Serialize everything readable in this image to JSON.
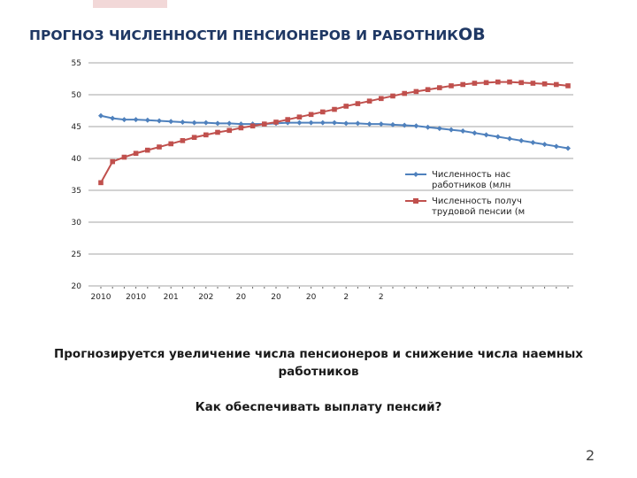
{
  "title_main": "ПРОГНОЗ ЧИСЛЕННОСТИ ПЕНСИОНЕРОВ И РАБОТНИК",
  "title_tail": "ОВ",
  "caption_line1": "Прогнозируется увеличение числа пенсионеров и снижение числа наемных работников",
  "caption_line2": "Как обеспечивать выплату пенсий?",
  "page_number": "2",
  "chart_data": {
    "type": "line",
    "title": "",
    "xlabel": "",
    "ylabel": "",
    "ylim": [
      20,
      55
    ],
    "yticks": [
      "20",
      "25",
      "30",
      "35",
      "40",
      "45",
      "50",
      "55"
    ],
    "xtick_labels": [
      "2010",
      "2010",
      "201",
      "202",
      "20",
      "20",
      "20",
      "2",
      "2"
    ],
    "grid": "horizontal",
    "legend_position": "right",
    "colors": {
      "workers": "#4f81bd",
      "pensioners": "#c0504d",
      "grid": "#a6a6a6"
    },
    "series": [
      {
        "name": "Численность нас работников (млн",
        "legend_line1": "Численность нас",
        "legend_line2": "работников (млн",
        "values": [
          46.7,
          46.3,
          46.1,
          46.1,
          46.0,
          45.9,
          45.8,
          45.7,
          45.6,
          45.6,
          45.5,
          45.5,
          45.4,
          45.4,
          45.4,
          45.5,
          45.6,
          45.6,
          45.6,
          45.6,
          45.6,
          45.5,
          45.5,
          45.4,
          45.4,
          45.3,
          45.2,
          45.1,
          44.9,
          44.7,
          44.5,
          44.3,
          44.0,
          43.7,
          43.4,
          43.1,
          42.8,
          42.5,
          42.2,
          41.9,
          41.6
        ]
      },
      {
        "name": "Численность получ трудовой пенсии (м",
        "legend_line1": "Численность получ",
        "legend_line2": "трудовой пенсии (м",
        "values": [
          36.2,
          39.5,
          40.2,
          40.8,
          41.3,
          41.8,
          42.3,
          42.8,
          43.3,
          43.7,
          44.1,
          44.4,
          44.8,
          45.1,
          45.4,
          45.7,
          46.1,
          46.5,
          46.9,
          47.3,
          47.7,
          48.2,
          48.6,
          49.0,
          49.4,
          49.8,
          50.2,
          50.5,
          50.8,
          51.1,
          51.4,
          51.6,
          51.8,
          51.9,
          52.0,
          52.0,
          51.9,
          51.8,
          51.7,
          51.6,
          51.4
        ]
      }
    ]
  }
}
